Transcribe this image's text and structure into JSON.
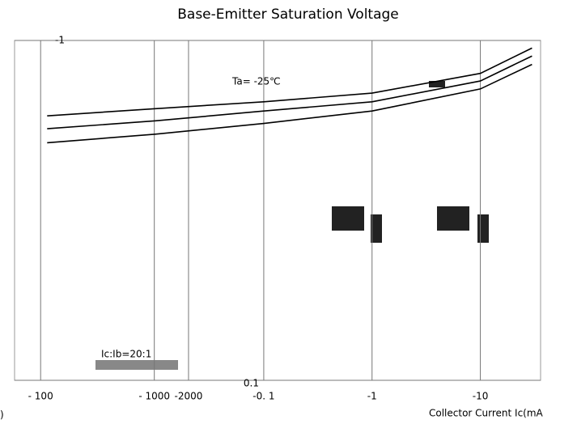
{
  "chart_data": [
    {
      "type": "line",
      "annotations": [
        "Ic:Ib=20:1"
      ],
      "x_label": ")",
      "log_x": true,
      "xlim": [
        -59,
        -6000
      ],
      "xticks": [
        {
          "value": -100,
          "label": "- 100"
        },
        {
          "value": -1000,
          "label": "- 1000"
        },
        -2000
      ],
      "grid": true
    },
    {
      "type": "line",
      "title": "Base-Emitter Saturation Voltage",
      "annotations": [
        "Ta= -25℃"
      ],
      "x_label": "Collector Current   Ic(mA",
      "log_x": true,
      "log_y": true,
      "xlim": [
        -0.0005,
        -36
      ],
      "ylim": [
        -0.1,
        -1
      ],
      "xticks": [
        {
          "value": -0.1,
          "label": "-0. 1"
        },
        -1,
        -10
      ],
      "yticks": [
        {
          "value": -0.1,
          "label": "0.1"
        },
        -1
      ],
      "grid": true,
      "x": [
        -0.001,
        -0.01,
        -0.1,
        -1,
        -10,
        -30
      ],
      "series": [
        {
          "color": "#000000",
          "values": [
            -0.6,
            -0.63,
            -0.66,
            -0.7,
            -0.8,
            -0.95
          ]
        },
        {
          "color": "#000000",
          "values": [
            -0.55,
            -0.58,
            -0.62,
            -0.66,
            -0.76,
            -0.9
          ]
        },
        {
          "color": "#000000",
          "values": [
            -0.5,
            -0.53,
            -0.57,
            -0.62,
            -0.72,
            -0.85
          ]
        }
      ]
    }
  ]
}
